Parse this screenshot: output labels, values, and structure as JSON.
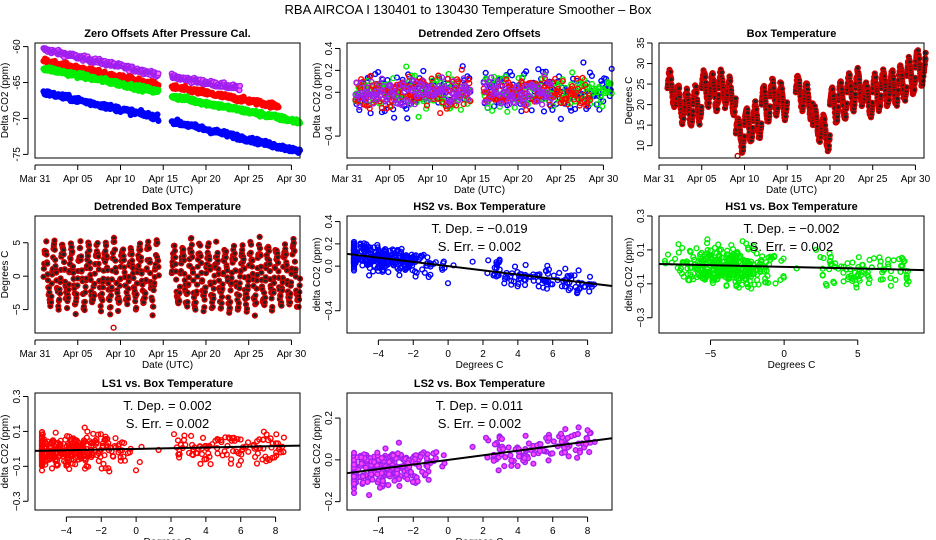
{
  "title": "RBA   AIRCOA I   130401 to 130430   Temperature Smoother – Box",
  "colors": {
    "HS2": "#0000ff",
    "HS1": "#00ee00",
    "LS1": "#ff0000",
    "LS2": "#a020f0",
    "temp": "#cc0000",
    "temp_dark": "#222222",
    "fit": "#000000"
  },
  "chart_data": [
    {
      "id": "zero-offsets",
      "type": "scatter",
      "title": "Zero Offsets After Pressure Cal.",
      "xlabel": "Date (UTC)",
      "ylabel": "Delta CO2 (ppm)",
      "xlim": [
        0,
        31
      ],
      "ylim": [
        -75.5,
        -59.5
      ],
      "xticks": [
        {
          "v": 0,
          "l": "Mar 31"
        },
        {
          "v": 5,
          "l": "Apr 05"
        },
        {
          "v": 10,
          "l": "Apr 10"
        },
        {
          "v": 15,
          "l": "Apr 15"
        },
        {
          "v": 20,
          "l": "Apr 20"
        },
        {
          "v": 25,
          "l": "Apr 25"
        },
        {
          "v": 30,
          "l": "Apr 30"
        }
      ],
      "yticks": [
        {
          "v": -60,
          "l": "-60"
        },
        {
          "v": -65,
          "l": "-65"
        },
        {
          "v": -70,
          "l": "-70"
        },
        {
          "v": -75,
          "l": "-75"
        }
      ],
      "series": [
        {
          "name": "LS2",
          "segments": [
            [
              1,
              -60.4,
              14.5,
              -63.9
            ],
            [
              16,
              -64.2,
              24,
              -65.8
            ]
          ]
        },
        {
          "name": "LS1",
          "segments": [
            [
              1,
              -62.0,
              14.5,
              -65.4
            ],
            [
              16,
              -65.6,
              28.5,
              -68.3
            ]
          ]
        },
        {
          "name": "HS1",
          "segments": [
            [
              1,
              -63.0,
              14.5,
              -66.3
            ],
            [
              16,
              -66.9,
              31,
              -70.5
            ]
          ]
        },
        {
          "name": "HS2",
          "segments": [
            [
              1,
              -66.4,
              14.5,
              -69.9
            ],
            [
              16,
              -70.4,
              31,
              -74.6
            ]
          ]
        }
      ]
    },
    {
      "id": "detrended-zero-offsets",
      "type": "scatter",
      "title": "Detrended Zero Offsets",
      "xlabel": "Date (UTC)",
      "ylabel": "Delta CO2 (ppm)",
      "xlim": [
        0,
        31
      ],
      "ylim": [
        -0.6,
        0.45
      ],
      "xticks": [
        {
          "v": 0,
          "l": "Mar 31"
        },
        {
          "v": 5,
          "l": "Apr 05"
        },
        {
          "v": 10,
          "l": "Apr 10"
        },
        {
          "v": 15,
          "l": "Apr 15"
        },
        {
          "v": 20,
          "l": "Apr 20"
        },
        {
          "v": 25,
          "l": "Apr 25"
        },
        {
          "v": 30,
          "l": "Apr 30"
        }
      ],
      "yticks": [
        {
          "v": 0.4,
          "l": "0.4"
        },
        {
          "v": 0.2,
          "l": "0.2"
        },
        {
          "v": 0.0,
          "l": "0.0"
        },
        {
          "v": -0.4,
          "l": "−0.4"
        }
      ],
      "series": [
        {
          "name": "HS2",
          "ranges": [
            [
              1,
              14.5
            ],
            [
              16,
              31
            ]
          ],
          "spread": 0.14
        },
        {
          "name": "HS1",
          "ranges": [
            [
              1,
              14.5
            ],
            [
              16,
              31
            ]
          ],
          "spread": 0.12
        },
        {
          "name": "LS1",
          "ranges": [
            [
              1,
              14.5
            ],
            [
              16,
              28.5
            ]
          ],
          "spread": 0.11
        },
        {
          "name": "LS2",
          "ranges": [
            [
              1,
              14.5
            ],
            [
              16,
              24
            ]
          ],
          "spread": 0.09
        }
      ]
    },
    {
      "id": "box-temperature",
      "type": "scatter",
      "title": "Box Temperature",
      "xlabel": "Date (UTC)",
      "ylabel": "Degrees C",
      "xlim": [
        0,
        31
      ],
      "ylim": [
        7,
        35
      ],
      "xticks": [
        {
          "v": 0,
          "l": "Mar 31"
        },
        {
          "v": 5,
          "l": "Apr 05"
        },
        {
          "v": 10,
          "l": "Apr 10"
        },
        {
          "v": 15,
          "l": "Apr 15"
        },
        {
          "v": 20,
          "l": "Apr 20"
        },
        {
          "v": 25,
          "l": "Apr 25"
        },
        {
          "v": 30,
          "l": "Apr 30"
        }
      ],
      "yticks": [
        {
          "v": 10,
          "l": "10"
        },
        {
          "v": 15,
          "l": "15"
        },
        {
          "v": 20,
          "l": "20"
        },
        {
          "v": 25,
          "l": "25"
        },
        {
          "v": 30,
          "l": "30"
        },
        {
          "v": 35,
          "l": "35"
        }
      ],
      "daily_mean": [
        [
          1,
          24
        ],
        [
          2,
          20
        ],
        [
          3,
          19
        ],
        [
          4,
          20
        ],
        [
          5,
          24
        ],
        [
          6,
          23
        ],
        [
          7,
          24
        ],
        [
          8,
          22
        ],
        [
          9,
          13
        ],
        [
          10,
          15
        ],
        [
          11,
          16
        ],
        [
          12,
          20
        ],
        [
          13,
          22
        ],
        [
          14,
          21
        ],
        [
          16,
          23
        ],
        [
          17,
          21
        ],
        [
          18,
          15
        ],
        [
          19,
          13
        ],
        [
          20,
          20
        ],
        [
          21,
          21
        ],
        [
          22,
          23
        ],
        [
          23,
          24
        ],
        [
          24,
          21
        ],
        [
          25,
          23
        ],
        [
          26,
          24
        ],
        [
          27,
          24
        ],
        [
          28,
          25
        ],
        [
          29,
          27
        ],
        [
          30,
          29
        ],
        [
          31,
          28
        ]
      ],
      "daily_amplitude": 4.5,
      "min_point": [
        9.2,
        7.5
      ]
    },
    {
      "id": "detrended-box-temperature",
      "type": "scatter",
      "title": "Detrended Box Temperature",
      "xlabel": "Date (UTC)",
      "ylabel": "Degrees C",
      "xlim": [
        0,
        31
      ],
      "ylim": [
        -8.5,
        9
      ],
      "xticks": [
        {
          "v": 0,
          "l": "Mar 31"
        },
        {
          "v": 5,
          "l": "Apr 05"
        },
        {
          "v": 10,
          "l": "Apr 10"
        },
        {
          "v": 15,
          "l": "Apr 15"
        },
        {
          "v": 20,
          "l": "Apr 20"
        },
        {
          "v": 25,
          "l": "Apr 25"
        },
        {
          "v": 30,
          "l": "Apr 30"
        }
      ],
      "yticks": [
        {
          "v": 5,
          "l": "5"
        },
        {
          "v": 0,
          "l": "0"
        },
        {
          "v": -5,
          "l": "−5"
        }
      ],
      "ranges": [
        [
          1,
          14.5
        ],
        [
          16,
          31
        ]
      ],
      "amplitude": 5,
      "min_point": [
        9.2,
        -7.7
      ]
    },
    {
      "id": "hs2-vs-box-temperature",
      "type": "scatter",
      "title": "HS2 vs. Box Temperature",
      "xlabel": "Degrees C",
      "ylabel": "delta CO2 (ppm)",
      "series_name": "HS2",
      "xlim": [
        -5.8,
        9.4
      ],
      "ylim": [
        -0.6,
        0.45
      ],
      "xticks": [
        {
          "v": -4,
          "l": "−4"
        },
        {
          "v": -2,
          "l": "−2"
        },
        {
          "v": 0,
          "l": "0"
        },
        {
          "v": 2,
          "l": "2"
        },
        {
          "v": 4,
          "l": "4"
        },
        {
          "v": 6,
          "l": "6"
        },
        {
          "v": 8,
          "l": "8"
        }
      ],
      "yticks": [
        {
          "v": 0.4,
          "l": "0.4"
        },
        {
          "v": 0.2,
          "l": "0.2"
        },
        {
          "v": 0.0,
          "l": "0.0"
        },
        {
          "v": -0.4,
          "l": "−0.4"
        }
      ],
      "fit": {
        "slope": -0.019,
        "intercept": 0.0
      },
      "spread": 0.1,
      "annotation": [
        "T. Dep. = −0.019",
        "S. Err. =  0.002"
      ]
    },
    {
      "id": "hs1-vs-box-temperature",
      "type": "scatter",
      "title": "HS1 vs. Box Temperature",
      "xlabel": "Degrees C",
      "ylabel": "delta CO2 (ppm)",
      "series_name": "HS1",
      "xlim": [
        -8.5,
        9.5
      ],
      "ylim": [
        -0.39,
        0.3
      ],
      "xticks": [
        {
          "v": -5,
          "l": "−5"
        },
        {
          "v": 0,
          "l": "0"
        },
        {
          "v": 5,
          "l": "5"
        }
      ],
      "yticks": [
        {
          "v": 0.3,
          "l": "0.3"
        },
        {
          "v": 0.1,
          "l": "0.1"
        },
        {
          "v": -0.1,
          "l": "−0.1"
        },
        {
          "v": -0.3,
          "l": "−0.3"
        }
      ],
      "fit": {
        "slope": -0.002,
        "intercept": 0.0
      },
      "spread": 0.09,
      "annotation": [
        "T. Dep. = −0.002",
        "S. Err. =  0.002"
      ]
    },
    {
      "id": "ls1-vs-box-temperature",
      "type": "scatter",
      "title": "LS1 vs. Box Temperature",
      "xlabel": "Degrees C",
      "ylabel": "delta CO2 (ppm)",
      "series_name": "LS1",
      "xlim": [
        -5.8,
        9.4
      ],
      "ylim": [
        -0.35,
        0.32
      ],
      "xticks": [
        {
          "v": -4,
          "l": "−4"
        },
        {
          "v": -2,
          "l": "−2"
        },
        {
          "v": 0,
          "l": "0"
        },
        {
          "v": 2,
          "l": "2"
        },
        {
          "v": 4,
          "l": "4"
        },
        {
          "v": 6,
          "l": "6"
        },
        {
          "v": 8,
          "l": "8"
        }
      ],
      "yticks": [
        {
          "v": 0.3,
          "l": "0.3"
        },
        {
          "v": 0.1,
          "l": "0.1"
        },
        {
          "v": -0.1,
          "l": "−0.1"
        },
        {
          "v": -0.3,
          "l": "−0.3"
        }
      ],
      "fit": {
        "slope": 0.002,
        "intercept": 0.0
      },
      "spread": 0.08,
      "annotation": [
        "T. Dep. =  0.002",
        "S. Err. =  0.002"
      ]
    },
    {
      "id": "ls2-vs-box-temperature",
      "type": "scatter",
      "title": "LS2 vs. Box Temperature",
      "xlabel": "Degrees C",
      "ylabel": "delta CO2 (ppm)",
      "series_name": "LS2",
      "xlim": [
        -5.8,
        9.4
      ],
      "ylim": [
        -0.24,
        0.32
      ],
      "xticks": [
        {
          "v": -4,
          "l": "−4"
        },
        {
          "v": -2,
          "l": "−2"
        },
        {
          "v": 0,
          "l": "0"
        },
        {
          "v": 2,
          "l": "2"
        },
        {
          "v": 4,
          "l": "4"
        },
        {
          "v": 6,
          "l": "6"
        },
        {
          "v": 8,
          "l": "8"
        }
      ],
      "yticks": [
        {
          "v": 0.2,
          "l": "0.2"
        },
        {
          "v": 0.0,
          "l": "0.0"
        },
        {
          "v": -0.2,
          "l": "−0.2"
        }
      ],
      "fit": {
        "slope": 0.011,
        "intercept": 0.0
      },
      "spread": 0.07,
      "annotation": [
        "T. Dep. =  0.011",
        "S. Err. =  0.002"
      ]
    }
  ]
}
